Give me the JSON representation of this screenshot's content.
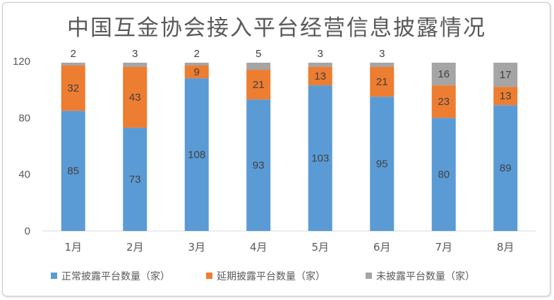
{
  "chart_data": {
    "type": "bar",
    "stacked": true,
    "title": "中国互金协会接入平台经营信息披露情况",
    "categories": [
      "1月",
      "2月",
      "3月",
      "4月",
      "5月",
      "6月",
      "7月",
      "8月"
    ],
    "series": [
      {
        "name": "正常披露平台数量（家）",
        "color": "#5b9bd5",
        "label_color": "#404040",
        "values": [
          85,
          73,
          108,
          93,
          103,
          95,
          80,
          89
        ]
      },
      {
        "name": "延期披露平台数量（家）",
        "color": "#ed7d31",
        "label_color": "#404040",
        "values": [
          32,
          43,
          9,
          21,
          13,
          21,
          23,
          13
        ]
      },
      {
        "name": "未披露平台数量（家）",
        "color": "#a5a5a5",
        "label_color": "#404040",
        "values": [
          2,
          3,
          2,
          5,
          3,
          3,
          16,
          17
        ]
      }
    ],
    "y_ticks": [
      0,
      40,
      80,
      120
    ],
    "ylim": [
      0,
      120
    ],
    "legend_position": "bottom",
    "grid": false
  }
}
